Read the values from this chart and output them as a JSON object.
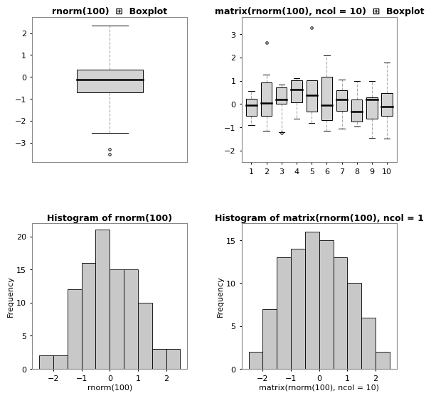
{
  "title_box1": "rnorm(100)  ⊞  Boxplot",
  "title_box2": "matrix(rnorm(100), ncol = 10)  ⊞  Boxplot",
  "title_hist1": "Histogram of rnorm(100)",
  "title_hist2": "Histogram of matrix(rnorm(100), ncol = 1",
  "xlabel_hist1": "rnorm(100)",
  "xlabel_hist2": "matrix(rnorm(100), ncol = 10)",
  "ylabel_hist": "Frequency",
  "box1": {
    "median": -0.12,
    "q1": -0.72,
    "q3": 0.32,
    "whisker_low": -2.55,
    "whisker_high": 2.35,
    "outliers": [
      -3.3,
      -3.55
    ]
  },
  "box2": [
    {
      "median": -0.05,
      "q1": -0.52,
      "q3": 0.22,
      "whisker_low": -0.9,
      "whisker_high": 0.55,
      "outliers": []
    },
    {
      "median": 0.05,
      "q1": -0.52,
      "q3": 0.92,
      "whisker_low": -1.15,
      "whisker_high": 1.25,
      "outliers": [
        2.65
      ]
    },
    {
      "median": 0.18,
      "q1": 0.0,
      "q3": 0.72,
      "whisker_low": -1.2,
      "whisker_high": 0.82,
      "outliers": [
        -1.25
      ]
    },
    {
      "median": 0.62,
      "q1": 0.08,
      "q3": 1.02,
      "whisker_low": -0.62,
      "whisker_high": 1.1,
      "outliers": []
    },
    {
      "median": 0.38,
      "q1": -0.32,
      "q3": 1.02,
      "whisker_low": -0.82,
      "whisker_high": 1.02,
      "outliers": [
        3.28
      ]
    },
    {
      "median": -0.05,
      "q1": -0.68,
      "q3": 1.18,
      "whisker_low": -1.15,
      "whisker_high": 2.1,
      "outliers": []
    },
    {
      "median": 0.18,
      "q1": -0.28,
      "q3": 0.58,
      "whisker_low": -1.05,
      "whisker_high": 1.05,
      "outliers": []
    },
    {
      "median": -0.32,
      "q1": -0.75,
      "q3": 0.18,
      "whisker_low": -0.98,
      "whisker_high": 0.98,
      "outliers": []
    },
    {
      "median": 0.18,
      "q1": -0.62,
      "q3": 0.28,
      "whisker_low": -1.45,
      "whisker_high": 0.98,
      "outliers": []
    },
    {
      "median": -0.12,
      "q1": -0.52,
      "q3": 0.48,
      "whisker_low": -1.48,
      "whisker_high": 1.78,
      "outliers": []
    }
  ],
  "hist1_edges": [
    -2.5,
    -2.0,
    -1.5,
    -1.0,
    -0.5,
    0.0,
    0.5,
    1.0,
    1.5,
    2.0,
    2.5
  ],
  "hist1_counts": [
    2,
    2,
    12,
    16,
    21,
    15,
    15,
    10,
    3,
    3
  ],
  "hist2_edges": [
    -2.5,
    -2.0,
    -1.5,
    -1.0,
    -0.5,
    0.0,
    0.5,
    1.0,
    1.5,
    2.0,
    2.5
  ],
  "hist2_counts": [
    2,
    7,
    13,
    14,
    16,
    15,
    13,
    10,
    6,
    2
  ],
  "box_facecolor": "#d3d3d3",
  "box_edge_color": "#000000",
  "hist_facecolor": "#c8c8c8",
  "hist_edge_color": "#000000",
  "background_color": "#ffffff",
  "title_fontsize": 9,
  "axis_fontsize": 8,
  "label_fontsize": 8,
  "whisker_color": "#aaaaaa",
  "tick_color": "#000000",
  "spine_color": "#888888"
}
